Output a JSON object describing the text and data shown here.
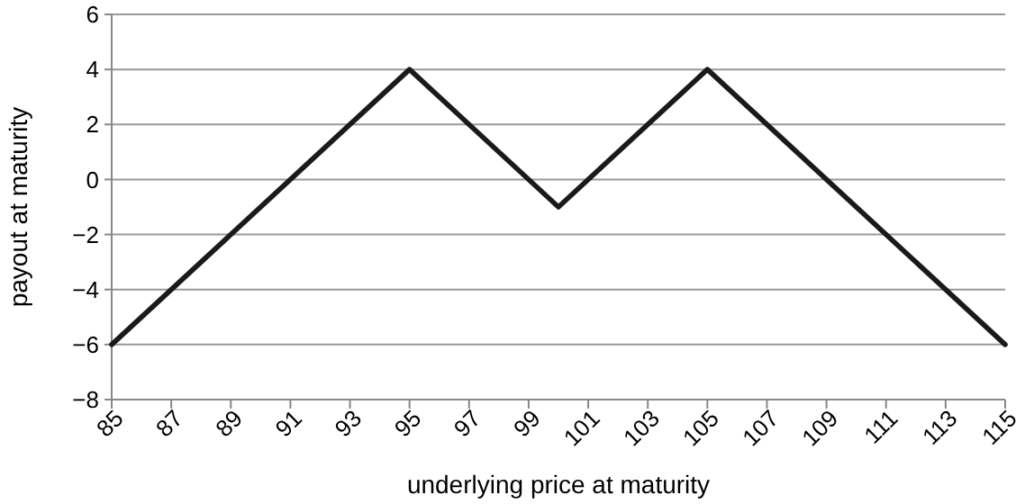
{
  "chart_data": {
    "type": "line",
    "xlabel": "underlying price at maturity",
    "ylabel": "payout at maturity",
    "x": [
      85,
      95,
      100,
      105,
      115
    ],
    "series": [
      {
        "color": "#1a1a1a",
        "values": [
          -6,
          4,
          -1,
          4,
          -6
        ]
      }
    ],
    "xlim": [
      85,
      115
    ],
    "xticks": [
      85,
      87,
      89,
      91,
      93,
      95,
      97,
      99,
      101,
      103,
      105,
      107,
      109,
      111,
      113,
      115
    ],
    "ylim": [
      -8,
      6
    ],
    "yticks": [
      {
        "value": -8,
        "label": "−8"
      },
      {
        "value": -6,
        "label": "−6"
      },
      {
        "value": -4,
        "label": "−4"
      },
      {
        "value": -2,
        "label": "−2"
      },
      0,
      2,
      4,
      6
    ],
    "grid": "y",
    "marker": "none",
    "line_style": "solid"
  }
}
